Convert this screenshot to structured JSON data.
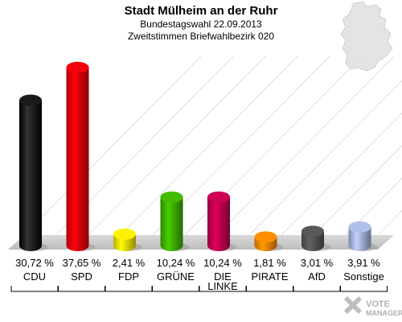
{
  "header": {
    "title": "Stadt Mülheim an der Ruhr",
    "subtitle1": "Bundestagswahl 22.09.2013",
    "subtitle2": "Zweitstimmen Briefwahlbezirk 020"
  },
  "logo": {
    "text": "VOTE MANAGER"
  },
  "chart_data": {
    "type": "bar",
    "title": "Stadt Mülheim an der Ruhr",
    "categories": [
      "CDU",
      "SPD",
      "FDP",
      "GRÜNE",
      "DIE LINKE",
      "PIRATE",
      "AfD",
      "Sonstige"
    ],
    "category_lines": [
      [
        "CDU"
      ],
      [
        "SPD"
      ],
      [
        "FDP"
      ],
      [
        "GRÜNE"
      ],
      [
        "DIE",
        "LINKE"
      ],
      [
        "PIRATE"
      ],
      [
        "AfD"
      ],
      [
        "Sonstige"
      ]
    ],
    "values": [
      30.72,
      37.65,
      2.41,
      10.24,
      10.24,
      1.81,
      3.01,
      3.91
    ],
    "value_labels": [
      "30,72 %",
      "37,65 %",
      "2,41 %",
      "10,24 %",
      "10,24 %",
      "1,81 %",
      "3,01 %",
      "3,91 %"
    ],
    "colors": [
      "#000000",
      "#e8000b",
      "#f5e600",
      "#3fb300",
      "#c4004f",
      "#ff8800",
      "#555555",
      "#a8b6e0"
    ],
    "ylim": [
      0,
      40
    ],
    "grid": true,
    "legend": "none"
  }
}
